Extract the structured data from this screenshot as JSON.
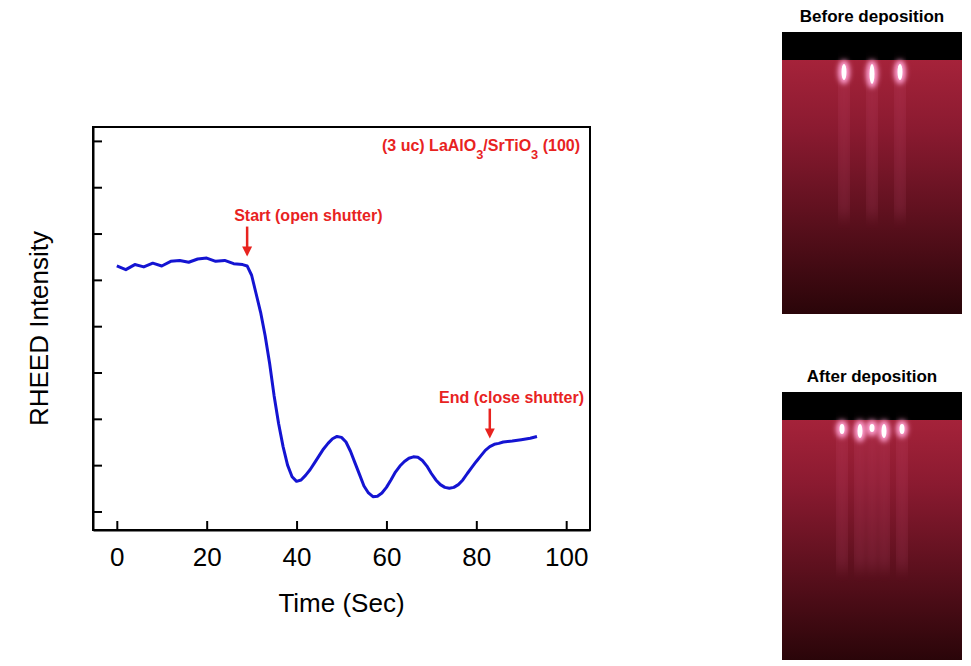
{
  "chart_data": {
    "type": "line",
    "title": "(3 uc) LaAlO3/SrTiO3 (100)",
    "x_label": "Time (Sec)",
    "y_label": "RHEED Intensity",
    "x": [
      0,
      2,
      4,
      6,
      8,
      10,
      12,
      14,
      16,
      18,
      20,
      22,
      24,
      26,
      28,
      29,
      30,
      31,
      32,
      33,
      34,
      35,
      36,
      37,
      38,
      39,
      40,
      41,
      42,
      43,
      44,
      45,
      46,
      47,
      48,
      49,
      50,
      51,
      52,
      53,
      54,
      55,
      56,
      57,
      58,
      59,
      60,
      61,
      62,
      63,
      64,
      65,
      66,
      67,
      68,
      69,
      70,
      71,
      72,
      73,
      74,
      75,
      76,
      77,
      78,
      79,
      80,
      81,
      82,
      83,
      84,
      85,
      86,
      88,
      90,
      92,
      93.5
    ],
    "values": [
      6.3,
      6.22,
      6.33,
      6.28,
      6.36,
      6.3,
      6.4,
      6.42,
      6.38,
      6.45,
      6.47,
      6.4,
      6.42,
      6.35,
      6.33,
      6.3,
      6.1,
      5.7,
      5.3,
      4.8,
      4.2,
      3.5,
      2.9,
      2.4,
      2.0,
      1.75,
      1.65,
      1.68,
      1.78,
      1.9,
      2.05,
      2.2,
      2.35,
      2.47,
      2.57,
      2.62,
      2.6,
      2.5,
      2.3,
      2.05,
      1.8,
      1.55,
      1.4,
      1.32,
      1.33,
      1.4,
      1.52,
      1.68,
      1.85,
      1.98,
      2.08,
      2.15,
      2.18,
      2.17,
      2.1,
      1.98,
      1.82,
      1.68,
      1.58,
      1.52,
      1.5,
      1.52,
      1.58,
      1.68,
      1.82,
      1.95,
      2.08,
      2.2,
      2.32,
      2.4,
      2.45,
      2.47,
      2.5,
      2.52,
      2.55,
      2.58,
      2.62
    ],
    "color": "#1414d2",
    "xlim": [
      -5.3,
      105.3
    ],
    "xticks": [
      0,
      20,
      40,
      60,
      80,
      100
    ],
    "ylim": [
      0.6,
      9.3
    ],
    "yticks": [
      1,
      2,
      3,
      4,
      5,
      6,
      7,
      8,
      9
    ],
    "tick_labels": "x",
    "grid": false,
    "annotations": [
      {
        "text": "Start (open shutter)",
        "x": 29,
        "y": 6.33,
        "color": "#e8231f"
      },
      {
        "text": "End (close shutter)",
        "x": 83,
        "y": 2.4,
        "color": "#e8231f"
      }
    ],
    "title_color": "#e8231f"
  },
  "images": [
    {
      "title": "Before deposition"
    },
    {
      "title": "After deposition"
    }
  ]
}
